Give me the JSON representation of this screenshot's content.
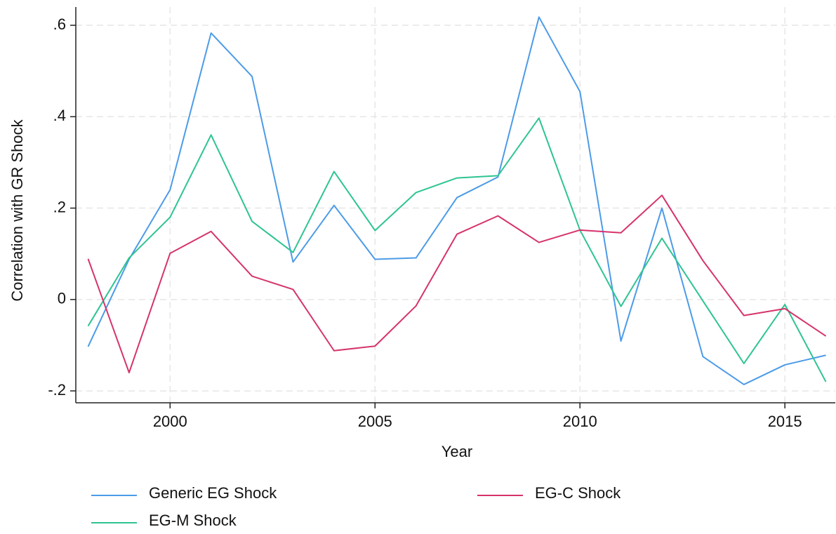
{
  "chart_data": {
    "type": "line",
    "x_label": "Year",
    "y_label": "Correlation with GR Shock",
    "x": [
      1998,
      1999,
      2000,
      2001,
      2002,
      2003,
      2004,
      2005,
      2006,
      2007,
      2008,
      2009,
      2010,
      2011,
      2012,
      2013,
      2014,
      2015,
      2016
    ],
    "series": [
      {
        "name": "Generic EG Shock",
        "color": "#4c9be8",
        "values": [
          -0.103,
          0.088,
          0.24,
          0.583,
          0.488,
          0.082,
          0.206,
          0.088,
          0.091,
          0.223,
          0.268,
          0.618,
          0.455,
          -0.091,
          0.2,
          -0.125,
          -0.186,
          -0.143,
          -0.122
        ]
      },
      {
        "name": "EG-M Shock",
        "color": "#2ec492",
        "values": [
          -0.058,
          0.091,
          0.18,
          0.36,
          0.171,
          0.103,
          0.28,
          0.151,
          0.234,
          0.266,
          0.271,
          0.397,
          0.152,
          -0.015,
          0.134,
          -0.003,
          -0.14,
          -0.011,
          -0.18
        ]
      },
      {
        "name": "EG-C Shock",
        "color": "#d6336c",
        "values": [
          0.089,
          -0.16,
          0.101,
          0.149,
          0.051,
          0.022,
          -0.112,
          -0.102,
          -0.014,
          0.143,
          0.183,
          0.125,
          0.152,
          0.146,
          0.228,
          0.085,
          -0.035,
          -0.02,
          -0.08
        ]
      }
    ],
    "xlim": [
      1997.7,
      2016.23
    ],
    "xticks": [
      2000,
      2005,
      2010,
      2015
    ],
    "ylim": [
      -0.226,
      0.64
    ],
    "yticks": [
      {
        "value": -0.2,
        "label": "-.2"
      },
      0,
      {
        "value": 0.2,
        "label": ".2"
      },
      {
        "value": 0.4,
        "label": ".4"
      },
      {
        "value": 0.6,
        "label": ".6"
      }
    ],
    "grid": true
  }
}
